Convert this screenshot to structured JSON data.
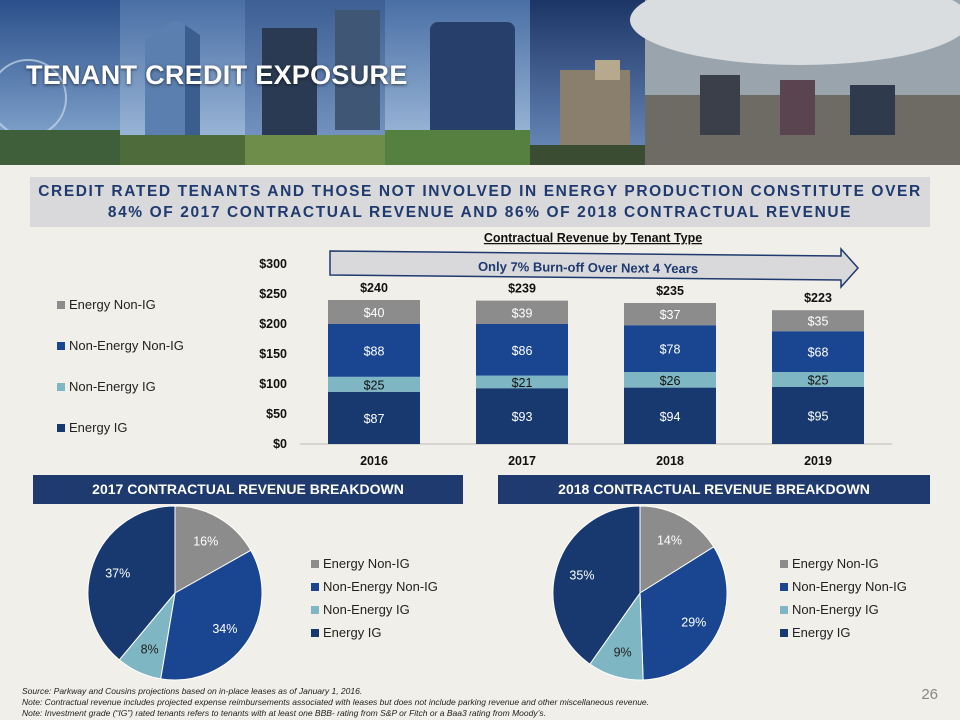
{
  "header": {
    "title": "TENANT CREDIT EXPOSURE"
  },
  "headline": {
    "line1": "CREDIT RATED TENANTS AND THOSE NOT INVOLVED IN ENERGY PRODUCTION CONSTITUTE OVER",
    "line2": "84% OF 2017 CONTRACTUAL REVENUE AND 86% OF 2018 CONTRACTUAL REVENUE"
  },
  "colors": {
    "energy_non_ig": "#8c8c8c",
    "non_energy_non_ig": "#1a4691",
    "non_energy_ig": "#7fb6c3",
    "energy_ig": "#17396f",
    "navy": "#1f3a6e",
    "background": "#f0efe9"
  },
  "legend_labels": [
    "Energy Non-IG",
    "Non-Energy Non-IG",
    "Non-Energy IG",
    "Energy IG"
  ],
  "chart_data": [
    {
      "type": "bar",
      "stacked": true,
      "title": "Contractual Revenue by Tenant Type",
      "annotation": "Only 7% Burn-off Over Next 4 Years",
      "categories": [
        "2016",
        "2017",
        "2018",
        "2019"
      ],
      "series": [
        {
          "name": "Energy IG",
          "values": [
            87,
            93,
            94,
            95
          ],
          "labels": [
            "$87",
            "$93",
            "$94",
            "$95"
          ]
        },
        {
          "name": "Non-Energy IG",
          "values": [
            25,
            21,
            26,
            25
          ],
          "labels": [
            "$25",
            "$21",
            "$26",
            "$25"
          ]
        },
        {
          "name": "Non-Energy Non-IG",
          "values": [
            88,
            86,
            78,
            68
          ],
          "labels": [
            "$88",
            "$86",
            "$78",
            "$68"
          ]
        },
        {
          "name": "Energy Non-IG",
          "values": [
            40,
            39,
            37,
            35
          ],
          "labels": [
            "$40",
            "$39",
            "$37",
            "$35"
          ]
        }
      ],
      "totals": [
        "$240",
        "$239",
        "$235",
        "$223"
      ],
      "total_values": [
        240,
        239,
        235,
        223
      ],
      "ylim": [
        0,
        300
      ],
      "yticks": [
        0,
        50,
        100,
        150,
        200,
        250,
        300
      ],
      "ytick_labels": [
        "$0",
        "$50",
        "$100",
        "$150",
        "$200",
        "$250",
        "$300"
      ],
      "legend_position": "left"
    },
    {
      "type": "pie",
      "title": "2017 CONTRACTUAL REVENUE BREAKDOWN",
      "slices": [
        {
          "name": "Energy Non-IG",
          "value": 16,
          "label": "16%"
        },
        {
          "name": "Non-Energy Non-IG",
          "value": 34,
          "label": "34%"
        },
        {
          "name": "Non-Energy IG",
          "value": 8,
          "label": "8%"
        },
        {
          "name": "Energy IG",
          "value": 37,
          "label": "37%"
        }
      ],
      "legend_position": "right"
    },
    {
      "type": "pie",
      "title": "2018 CONTRACTUAL REVENUE BREAKDOWN",
      "slices": [
        {
          "name": "Energy Non-IG",
          "value": 14,
          "label": "14%"
        },
        {
          "name": "Non-Energy Non-IG",
          "value": 29,
          "label": "29%"
        },
        {
          "name": "Non-Energy IG",
          "value": 9,
          "label": "9%"
        },
        {
          "name": "Energy IG",
          "value": 35,
          "label": "35%"
        }
      ],
      "legend_position": "right"
    }
  ],
  "footnotes": {
    "source": "Source: Parkway and Cousins projections based on in-place leases as of January 1, 2016.",
    "note1": "Note: Contractual revenue includes projected expense reimbursements associated with leases but does not include parking revenue and other miscellaneous revenue.",
    "note2": "Note: Investment grade (“IG”) rated tenants refers to tenants with at least one BBB- rating from S&P or Fitch or a Baa3 rating from Moody’s."
  },
  "page_number": "26"
}
